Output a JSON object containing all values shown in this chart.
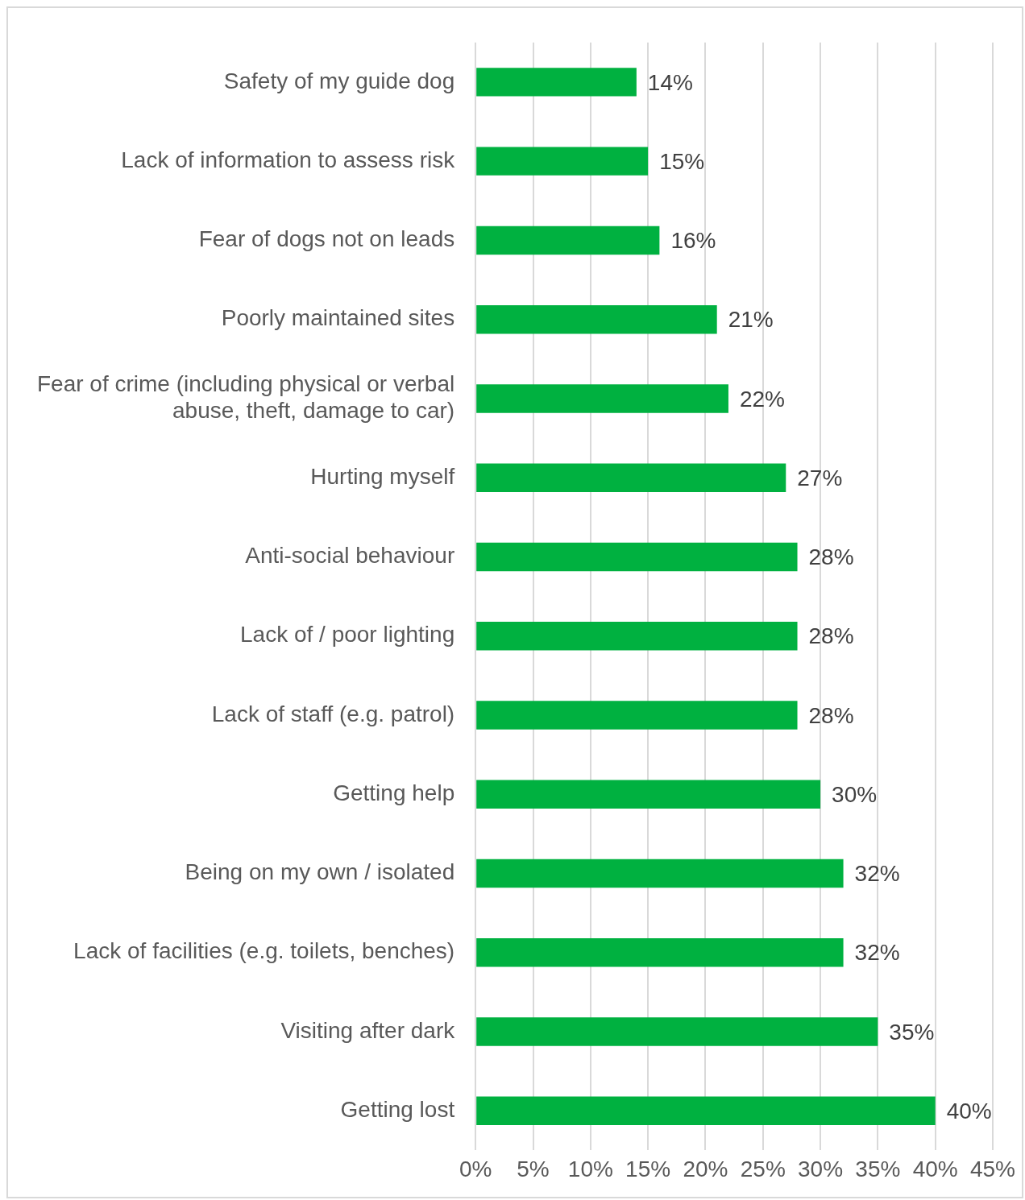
{
  "chart_data": {
    "type": "bar",
    "orientation": "horizontal",
    "categories": [
      "Safety of my guide dog",
      "Lack of information to assess risk",
      "Fear of dogs not on leads",
      "Poorly maintained sites",
      "Fear of crime (including physical or verbal abuse, theft, damage to car)",
      "Hurting myself",
      "Anti-social behaviour",
      "Lack of / poor lighting",
      "Lack of staff (e.g. patrol)",
      "Getting help",
      "Being on my own / isolated",
      "Lack of facilities (e.g. toilets, benches)",
      "Visiting after dark",
      "Getting lost"
    ],
    "values": [
      14,
      15,
      16,
      21,
      22,
      27,
      28,
      28,
      28,
      30,
      32,
      32,
      35,
      40
    ],
    "value_labels": [
      "14%",
      "15%",
      "16%",
      "21%",
      "22%",
      "27%",
      "28%",
      "28%",
      "28%",
      "30%",
      "32%",
      "32%",
      "35%",
      "40%"
    ],
    "color": "#00b140",
    "xlim": [
      0,
      45
    ],
    "xticks": [
      {
        "value": 0,
        "label": "0%"
      },
      {
        "value": 5,
        "label": "5%"
      },
      {
        "value": 10,
        "label": "10%"
      },
      {
        "value": 15,
        "label": "15%"
      },
      {
        "value": 20,
        "label": "20%"
      },
      {
        "value": 25,
        "label": "25%"
      },
      {
        "value": 30,
        "label": "30%"
      },
      {
        "value": 35,
        "label": "35%"
      },
      {
        "value": 40,
        "label": "40%"
      },
      {
        "value": 45,
        "label": "45%"
      }
    ],
    "grid": "x",
    "legend": false
  }
}
